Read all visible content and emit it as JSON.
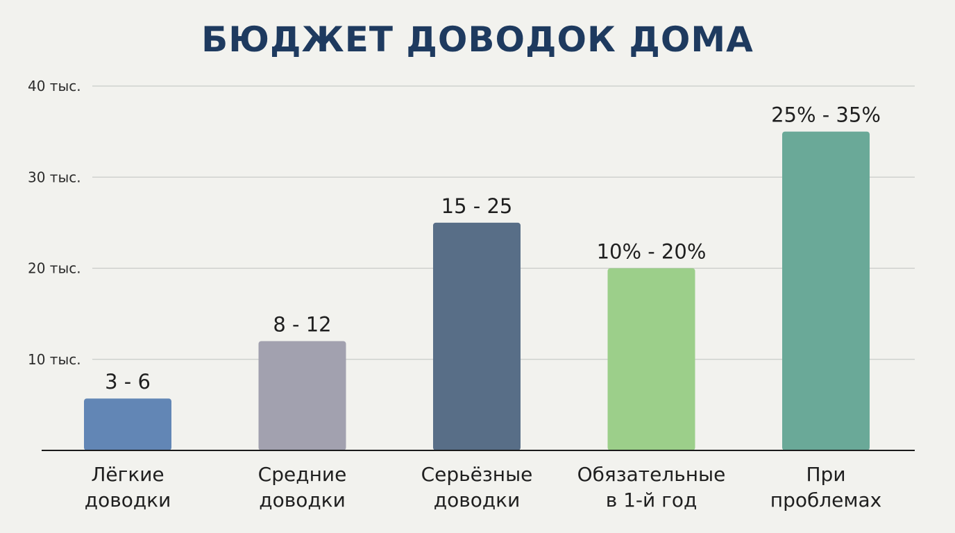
{
  "chart_data": {
    "type": "bar",
    "title": "БЮДЖЕТ ДОВОДОК ДОМА",
    "xlabel": "",
    "ylabel": "",
    "ylim": [
      0,
      40
    ],
    "yticks": [
      {
        "value": 10,
        "label": "10 тыс."
      },
      {
        "value": 20,
        "label": "20 тыс."
      },
      {
        "value": 30,
        "label": "30 тыс."
      },
      {
        "value": 40,
        "label": "40 тыс."
      }
    ],
    "grid": true,
    "categories": [
      [
        "Лёгкие",
        "доводки"
      ],
      [
        "Средние",
        "доводки"
      ],
      [
        "Серьёзные",
        "доводки"
      ],
      [
        "Обязательные",
        "в 1-й год"
      ],
      [
        "При",
        "проблемах"
      ]
    ],
    "values": [
      5.7,
      12,
      25,
      20,
      35
    ],
    "data_labels": [
      "3 - 6",
      "8 - 12",
      "15 - 25",
      "10% - 20%",
      "25% - 35%"
    ],
    "colors": [
      "#6286b5",
      "#a2a1af",
      "#586e87",
      "#9ccf8a",
      "#6aa998"
    ]
  }
}
